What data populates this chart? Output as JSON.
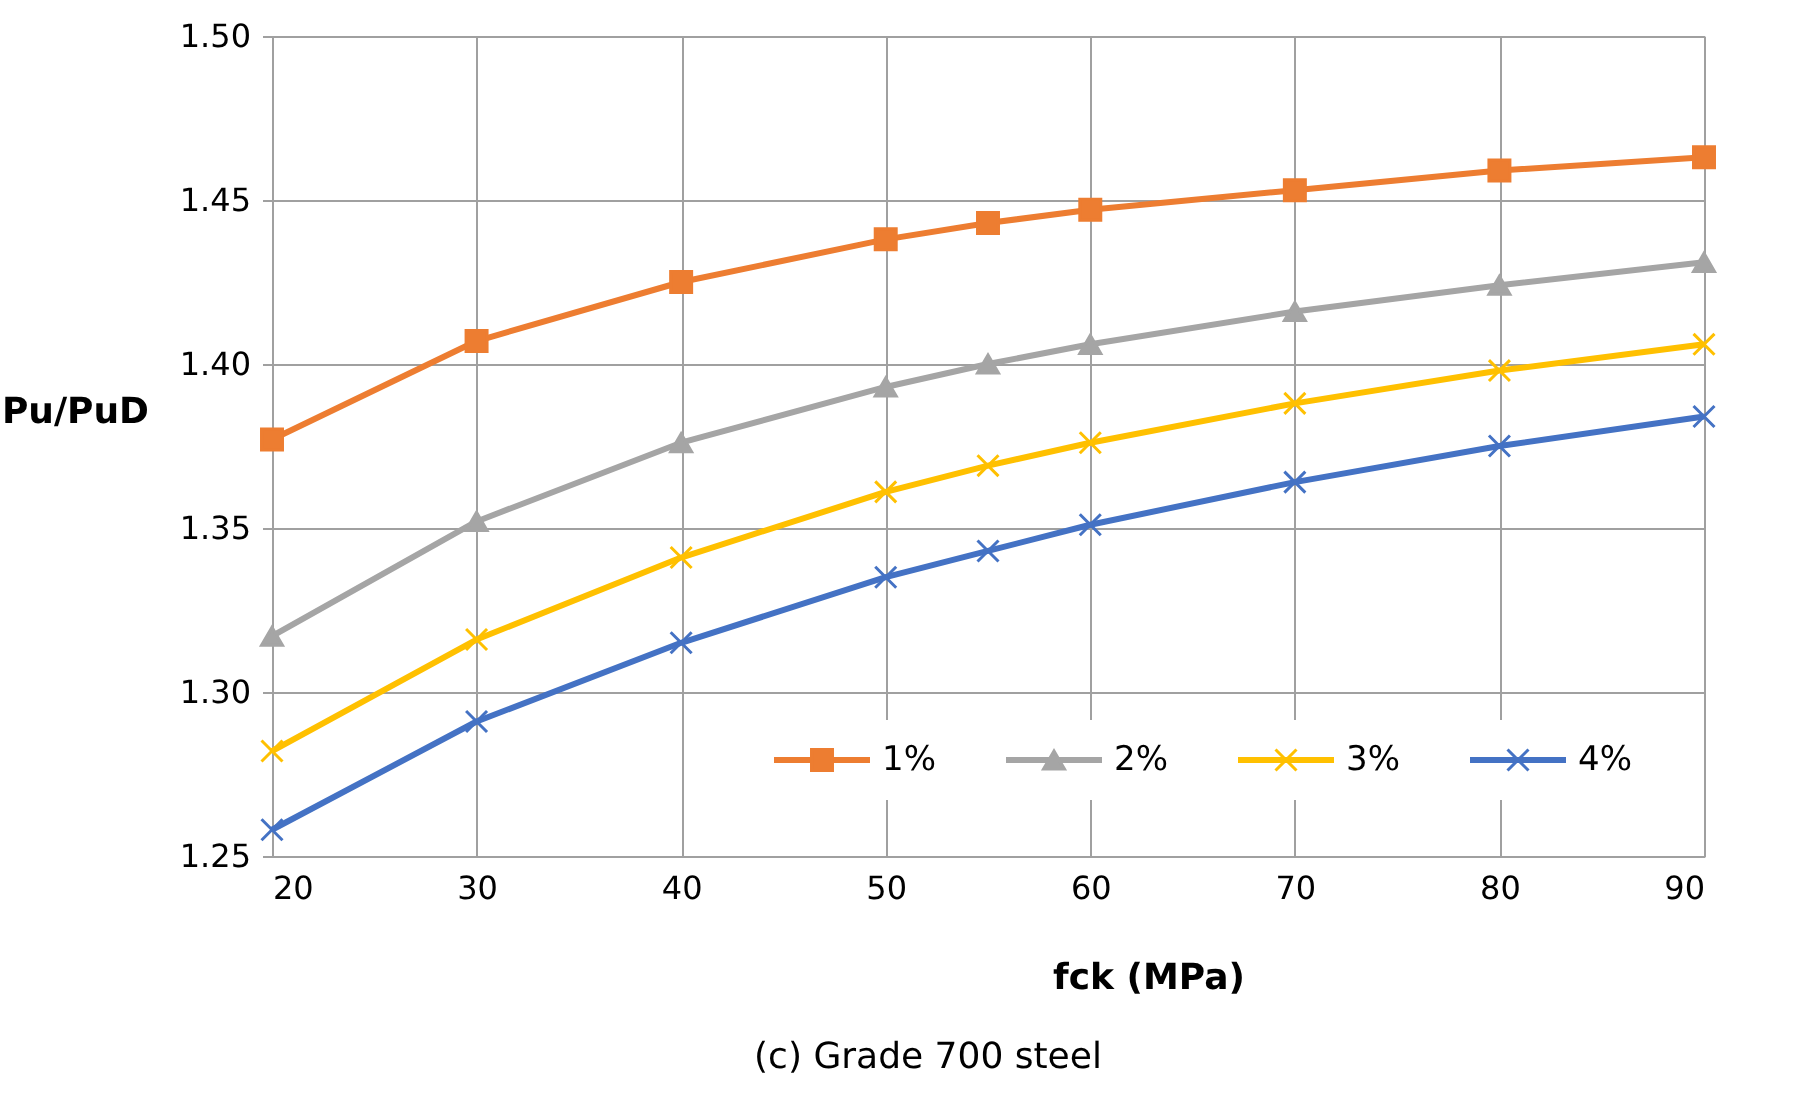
{
  "chart_data": {
    "type": "line",
    "xlabel": "fck (MPa)",
    "ylabel": "Pu/PuD",
    "annotations": [
      "(c) Grade 700 steel"
    ],
    "x": [
      20,
      30,
      40,
      50,
      55,
      60,
      70,
      80,
      90
    ],
    "series": [
      {
        "name": "1%",
        "color": "#ed7d31",
        "marker": "square",
        "values": [
          1.377,
          1.407,
          1.425,
          1.438,
          1.443,
          1.447,
          1.453,
          1.459,
          1.463
        ]
      },
      {
        "name": "2%",
        "color": "#a5a5a5",
        "marker": "triangle",
        "values": [
          1.317,
          1.352,
          1.376,
          1.393,
          1.4,
          1.406,
          1.416,
          1.424,
          1.431
        ]
      },
      {
        "name": "3%",
        "color": "#ffc000",
        "marker": "cross",
        "values": [
          1.282,
          1.316,
          1.341,
          1.361,
          1.369,
          1.376,
          1.388,
          1.398,
          1.406
        ]
      },
      {
        "name": "4%",
        "color": "#4472c4",
        "marker": "cross",
        "values": [
          1.258,
          1.291,
          1.315,
          1.335,
          1.343,
          1.351,
          1.364,
          1.375,
          1.384
        ]
      }
    ],
    "xlim": [
      20,
      90
    ],
    "xticks": [
      20,
      30,
      40,
      50,
      60,
      70,
      80,
      90
    ],
    "ylim": [
      1.25,
      1.5
    ],
    "yticks": [
      1.25,
      {
        "value": 1.3,
        "label": "1.30"
      },
      1.35,
      {
        "value": 1.4,
        "label": "1.40"
      },
      1.45,
      {
        "value": 1.5,
        "label": "1.50"
      }
    ],
    "grid": true,
    "legend": "bottom right",
    "line_style": "solid"
  }
}
